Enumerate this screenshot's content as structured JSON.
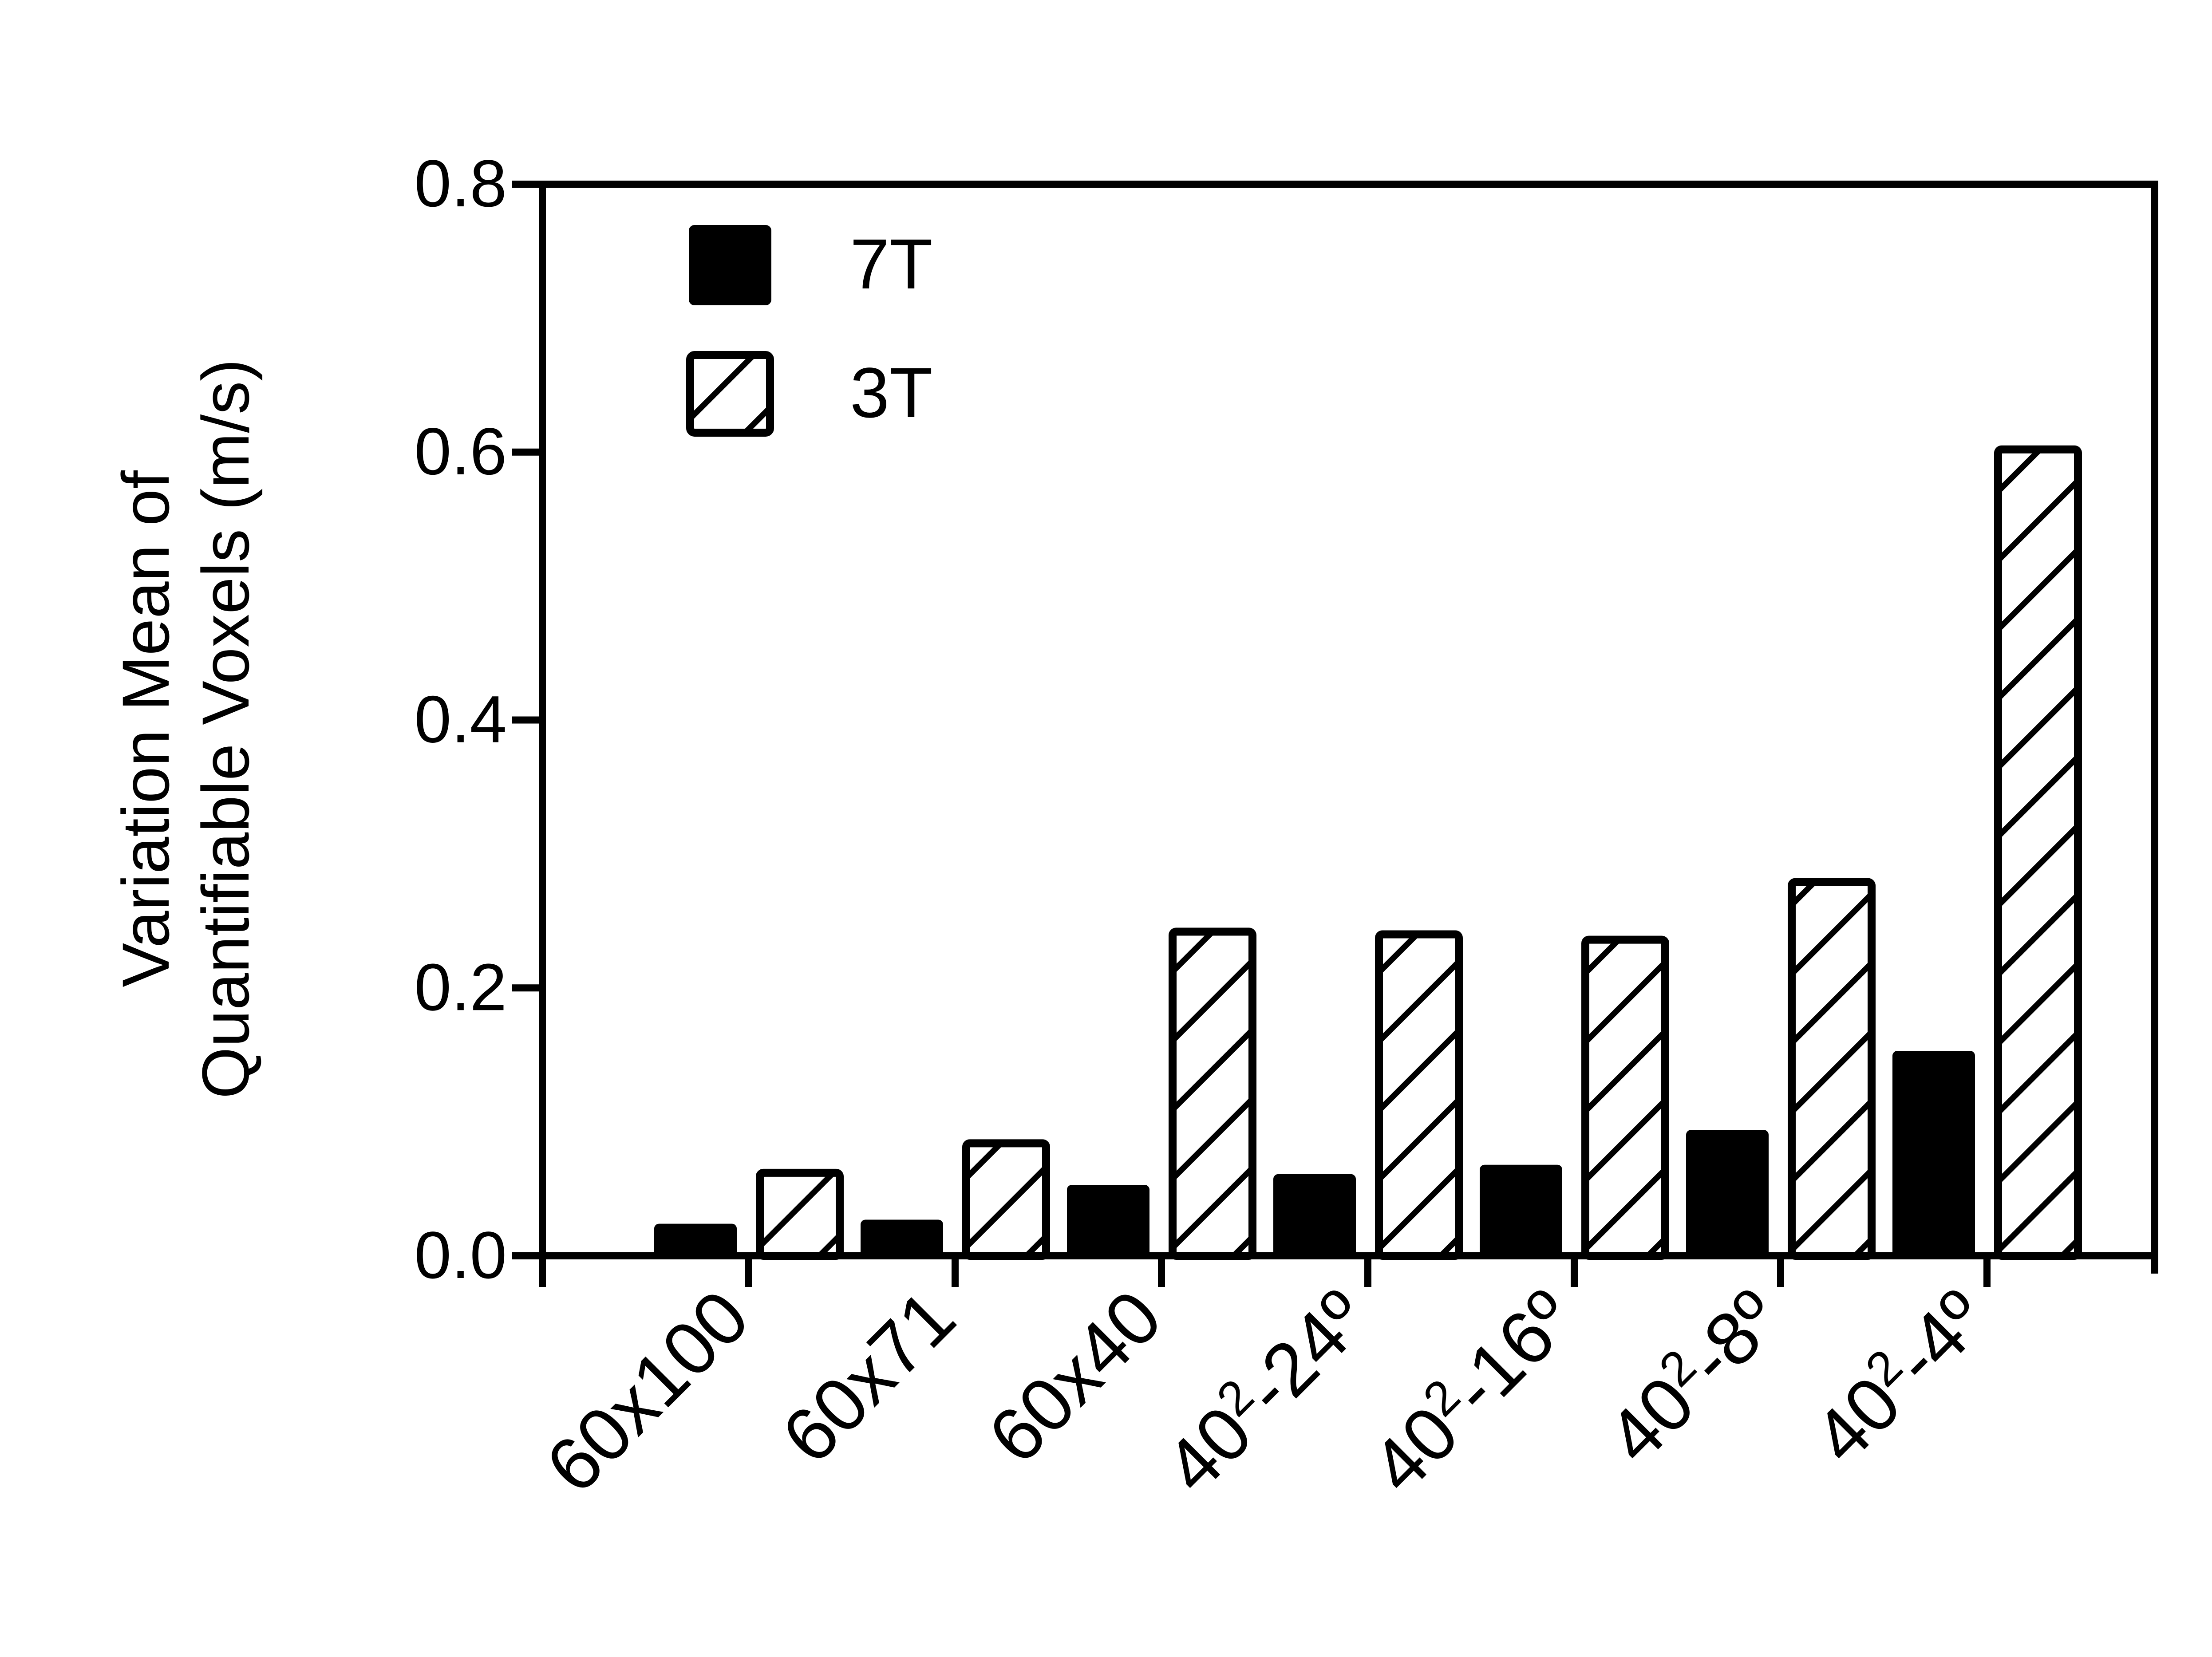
{
  "chart_data": {
    "type": "bar",
    "title": "",
    "xlabel": "",
    "ylabel_lines": [
      "Variation Mean of",
      "Quantifiable Voxels (m/s)"
    ],
    "ylim": [
      0,
      0.8
    ],
    "yticks": [
      "0.0",
      "0.2",
      "0.4",
      "0.6",
      "0.8"
    ],
    "categories": [
      {
        "base": "60x100",
        "sup": "",
        "tail": ""
      },
      {
        "base": "60x71",
        "sup": "",
        "tail": ""
      },
      {
        "base": "60x40",
        "sup": "",
        "tail": ""
      },
      {
        "base": "40",
        "sup": "2",
        "tail": "-24º"
      },
      {
        "base": "40",
        "sup": "2",
        "tail": "-16º"
      },
      {
        "base": "40",
        "sup": "2",
        "tail": "-8º"
      },
      {
        "base": "40",
        "sup": "2",
        "tail": "-4º"
      }
    ],
    "series": [
      {
        "name": "7T",
        "fill": "solid",
        "values": [
          0.023,
          0.026,
          0.052,
          0.06,
          0.067,
          0.093,
          0.152
        ]
      },
      {
        "name": "3T",
        "fill": "hatched",
        "values": [
          0.062,
          0.084,
          0.242,
          0.24,
          0.236,
          0.279,
          0.602
        ]
      }
    ],
    "legend": "top-left",
    "grid": false,
    "colors": {
      "ink": "#000000",
      "background": "#ffffff"
    }
  }
}
